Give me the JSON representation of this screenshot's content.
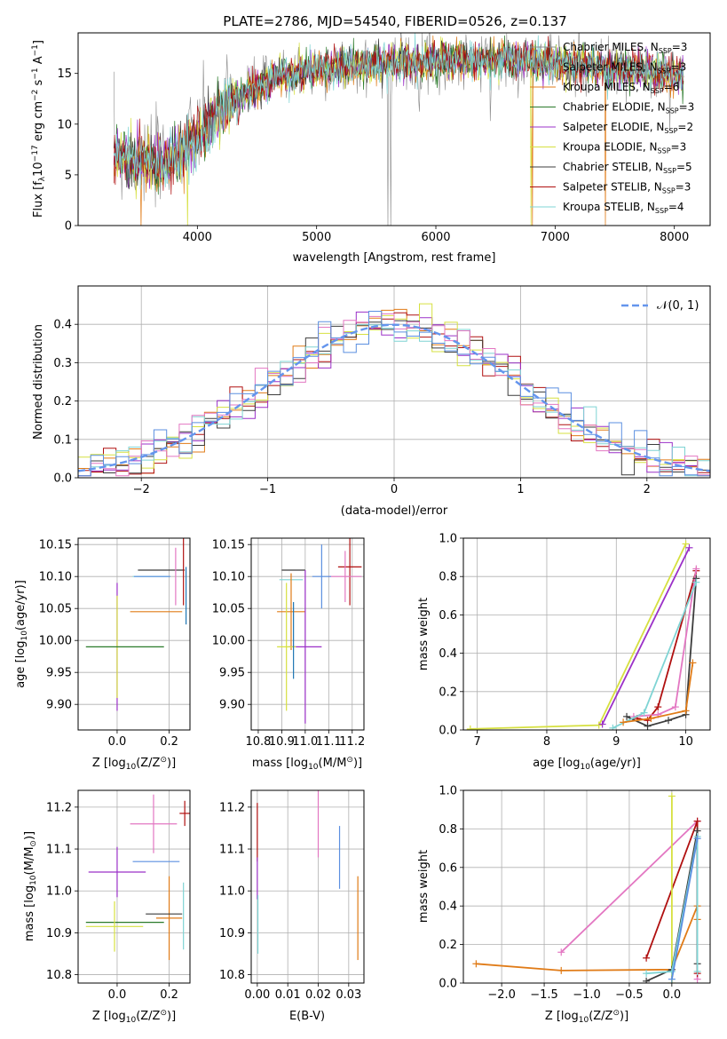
{
  "figure_title": "PLATE=2786, MJD=54540, FIBERID=0526, z=0.137",
  "colors": {
    "Chabrier MILES": "#1f77b4",
    "Salpeter MILES": "#8c8c8c",
    "Kroupa MILES": "#e07b17",
    "Chabrier ELODIE": "#2a7a2a",
    "Salpeter ELODIE": "#9b30c8",
    "Kroupa ELODIE": "#d6e040",
    "Chabrier STELIB": "#3c3c3c",
    "Salpeter STELIB": "#b01010",
    "Kroupa STELIB": "#7fd4d4",
    "extra_pink": "#e377c2",
    "extra_blue": "#5b8fe0",
    "gauss": "#6495ed"
  },
  "chart_data": [
    {
      "id": "spectrum",
      "type": "line",
      "title": "PLATE=2786, MJD=54540, FIBERID=0526, z=0.137",
      "xlabel": "wavelength [Angstrom, rest frame]",
      "ylabel_parts": [
        "Flux [f",
        "λ",
        "10",
        "−17",
        " erg cm",
        "−2",
        " s",
        "−1",
        " A",
        "−1",
        "]"
      ],
      "xlim": [
        3000,
        8300
      ],
      "ylim": [
        0,
        19
      ],
      "xticks": [
        "4000",
        "5000",
        "6000",
        "7000",
        "8000"
      ],
      "yticks": [
        "0",
        "5",
        "10",
        "15"
      ],
      "legend": [
        {
          "label": "Chabrier MILES, N",
          "sub": "SSP",
          "tail": "=3",
          "color_key": "Salpeter MILES"
        },
        {
          "label": "Salpeter MILES, N",
          "sub": "SSP",
          "tail": "=3",
          "color_key": "Salpeter MILES"
        },
        {
          "label": "Kroupa MILES, N",
          "sub": "SSP",
          "tail": "=6",
          "color_key": "Kroupa MILES"
        },
        {
          "label": "Chabrier ELODIE, N",
          "sub": "SSP",
          "tail": "=3",
          "color_key": "Chabrier ELODIE"
        },
        {
          "label": "Salpeter ELODIE, N",
          "sub": "SSP",
          "tail": "=2",
          "color_key": "Salpeter ELODIE"
        },
        {
          "label": "Kroupa ELODIE, N",
          "sub": "SSP",
          "tail": "=3",
          "color_key": "Kroupa ELODIE"
        },
        {
          "label": "Chabrier STELIB, N",
          "sub": "SSP",
          "tail": "=5",
          "color_key": "Chabrier STELIB"
        },
        {
          "label": "Salpeter STELIB, N",
          "sub": "SSP",
          "tail": "=3",
          "color_key": "Salpeter STELIB"
        },
        {
          "label": "Kroupa STELIB, N",
          "sub": "SSP",
          "tail": "=4",
          "color_key": "Kroupa STELIB"
        }
      ],
      "continuum": [
        [
          3300,
          7.0
        ],
        [
          3500,
          6.5
        ],
        [
          3700,
          6.0
        ],
        [
          3900,
          7.5
        ],
        [
          4100,
          10.0
        ],
        [
          4300,
          12.3
        ],
        [
          4500,
          13.6
        ],
        [
          4700,
          14.8
        ],
        [
          5000,
          15.3
        ],
        [
          5400,
          15.9
        ],
        [
          5800,
          16.1
        ],
        [
          6200,
          16.3
        ],
        [
          6600,
          16.3
        ],
        [
          7000,
          16.1
        ],
        [
          7400,
          15.6
        ],
        [
          7800,
          15.2
        ],
        [
          8080,
          14.8
        ]
      ],
      "dropouts": [
        [
          3530,
          "Kroupa MILES"
        ],
        [
          3920,
          "Kroupa ELODIE"
        ],
        [
          5600,
          "Salpeter MILES"
        ],
        [
          5620,
          "Salpeter MILES"
        ],
        [
          6800,
          "Kroupa ELODIE"
        ],
        [
          6810,
          "Kroupa MILES"
        ],
        [
          7420,
          "Kroupa MILES"
        ]
      ]
    },
    {
      "id": "residuals",
      "type": "line",
      "xlabel": "(data-model)/error",
      "ylabel": "Normed distribution",
      "xlim": [
        -2.5,
        2.5
      ],
      "ylim": [
        0,
        0.5
      ],
      "xticks": [
        "−2",
        "−1",
        "0",
        "1",
        "2"
      ],
      "yticks": [
        "0.0",
        "0.1",
        "0.2",
        "0.3",
        "0.4"
      ],
      "legend_label": "𝒩(0, 1)"
    },
    {
      "id": "age_vs_Z",
      "type": "scatter",
      "xlabel_parts": [
        "Z [log",
        "10",
        "(Z/Z",
        "⊙",
        ")]"
      ],
      "ylabel_parts": [
        "age  [log",
        "10",
        "(age/yr)]"
      ],
      "xlim": [
        -0.15,
        0.28
      ],
      "ylim": [
        9.86,
        10.16
      ],
      "xticks": [
        "0.0",
        "0.2"
      ],
      "yticks": [
        "9.90",
        "9.95",
        "10.00",
        "10.05",
        "10.10",
        "10.15"
      ],
      "points": [
        {
          "c": "Chabrier STELIB",
          "x": 0.17,
          "y": 10.11,
          "xe": 0.09,
          "ye": 0.0
        },
        {
          "c": "Salpeter STELIB",
          "x": 0.255,
          "y": 10.11,
          "xe": 0.0,
          "ye": 0.055
        },
        {
          "c": "Kroupa STELIB",
          "x": 0.13,
          "y": 10.1,
          "xe": 0.07,
          "ye": 0.0
        },
        {
          "c": "extra_pink",
          "x": 0.225,
          "y": 10.1,
          "xe": 0.0,
          "ye": 0.045
        },
        {
          "c": "extra_blue",
          "x": 0.135,
          "y": 10.1,
          "xe": 0.07,
          "ye": 0.0
        },
        {
          "c": "Kroupa MILES",
          "x": 0.15,
          "y": 10.045,
          "xe": 0.1,
          "ye": 0.0
        },
        {
          "c": "Salpeter ELODIE",
          "x": 0.0,
          "y": 9.99,
          "xe": 0.0,
          "ye": 0.1
        },
        {
          "c": "Kroupa ELODIE",
          "x": 0.0,
          "y": 9.99,
          "xe": 0.0,
          "ye": 0.08
        },
        {
          "c": "Chabrier ELODIE",
          "x": 0.03,
          "y": 9.99,
          "xe": 0.15,
          "ye": 0.0
        },
        {
          "c": "Chabrier MILES",
          "x": 0.265,
          "y": 10.07,
          "xe": 0.0,
          "ye": 0.045
        }
      ]
    },
    {
      "id": "age_vs_mass",
      "type": "scatter",
      "xlabel_parts": [
        "mass [log",
        "10",
        "(M/M",
        "⊙",
        ")]"
      ],
      "xlim": [
        10.77,
        11.25
      ],
      "ylim": [
        9.86,
        10.16
      ],
      "xticks": [
        "10.8",
        "10.9",
        "11.0",
        "11.1",
        "11.2"
      ],
      "yticks": [
        "9.90",
        "9.95",
        "10.00",
        "10.05",
        "10.10",
        "10.15"
      ],
      "points": [
        {
          "c": "Salpeter STELIB",
          "x": 11.19,
          "y": 10.115,
          "xe": 0.05,
          "ye": 0.06
        },
        {
          "c": "extra_pink",
          "x": 11.17,
          "y": 10.1,
          "xe": 0.07,
          "ye": 0.04
        },
        {
          "c": "extra_blue",
          "x": 11.07,
          "y": 10.1,
          "xe": 0.04,
          "ye": 0.05
        },
        {
          "c": "Chabrier STELIB",
          "x": 10.95,
          "y": 10.11,
          "xe": 0.05,
          "ye": 0.0
        },
        {
          "c": "Kroupa STELIB",
          "x": 10.94,
          "y": 10.095,
          "xe": 0.05,
          "ye": 0.0
        },
        {
          "c": "Kroupa MILES",
          "x": 10.94,
          "y": 10.045,
          "xe": 0.06,
          "ye": 0.06
        },
        {
          "c": "Salpeter ELODIE",
          "x": 11.0,
          "y": 9.99,
          "xe": 0.07,
          "ye": 0.12
        },
        {
          "c": "Kroupa ELODIE",
          "x": 10.92,
          "y": 9.99,
          "xe": 0.04,
          "ye": 0.1
        },
        {
          "c": "Chabrier MILES",
          "x": 10.95,
          "y": 10.0,
          "xe": 0.0,
          "ye": 0.06
        }
      ]
    },
    {
      "id": "weight_vs_age",
      "type": "line",
      "xlabel_parts": [
        "age  [log",
        "10",
        "(age/yr)]"
      ],
      "ylabel": "mass weight",
      "xlim": [
        6.8,
        10.35
      ],
      "ylim": [
        0,
        1.0
      ],
      "xticks": [
        "7",
        "8",
        "9",
        "10"
      ],
      "yticks": [
        "0.0",
        "0.2",
        "0.4",
        "0.6",
        "0.8",
        "1.0"
      ],
      "series": [
        {
          "c": "Kroupa ELODIE",
          "x": [
            6.9,
            8.75,
            10.0
          ],
          "y": [
            0.005,
            0.025,
            0.97
          ]
        },
        {
          "c": "Salpeter ELODIE",
          "x": [
            8.8,
            10.05
          ],
          "y": [
            0.03,
            0.95
          ]
        },
        {
          "c": "Salpeter STELIB",
          "x": [
            9.3,
            9.45,
            9.6,
            10.15
          ],
          "y": [
            0.06,
            0.05,
            0.12,
            0.83
          ]
        },
        {
          "c": "extra_pink",
          "x": [
            9.25,
            9.6,
            9.85,
            10.15
          ],
          "y": [
            0.07,
            0.08,
            0.12,
            0.84
          ]
        },
        {
          "c": "Chabrier STELIB",
          "x": [
            9.15,
            9.45,
            9.75,
            10.0,
            10.15
          ],
          "y": [
            0.07,
            0.02,
            0.05,
            0.08,
            0.79
          ]
        },
        {
          "c": "Kroupa STELIB",
          "x": [
            8.95,
            9.4,
            10.15
          ],
          "y": [
            0.01,
            0.09,
            0.77
          ]
        },
        {
          "c": "Kroupa MILES",
          "x": [
            9.1,
            9.5,
            10.0,
            10.1
          ],
          "y": [
            0.04,
            0.06,
            0.1,
            0.35
          ]
        }
      ]
    },
    {
      "id": "mass_vs_Z",
      "type": "scatter",
      "xlabel_parts": [
        "Z [log",
        "10",
        "(Z/Z",
        "⊙",
        ")]"
      ],
      "ylabel_parts": [
        "mass [log",
        "10",
        "(M/M",
        "⊙",
        ")]"
      ],
      "xlim": [
        -0.15,
        0.28
      ],
      "ylim": [
        10.78,
        11.24
      ],
      "xticks": [
        "0.0",
        "0.2"
      ],
      "yticks": [
        "10.8",
        "10.9",
        "11.0",
        "11.1",
        "11.2"
      ],
      "points": [
        {
          "c": "Salpeter STELIB",
          "x": 0.26,
          "y": 11.185,
          "xe": 0.02,
          "ye": 0.03
        },
        {
          "c": "extra_pink",
          "x": 0.14,
          "y": 11.16,
          "xe": 0.09,
          "ye": 0.07
        },
        {
          "c": "extra_blue",
          "x": 0.15,
          "y": 11.07,
          "xe": 0.09,
          "ye": 0.0
        },
        {
          "c": "Salpeter ELODIE",
          "x": 0.0,
          "y": 11.045,
          "xe": 0.11,
          "ye": 0.06
        },
        {
          "c": "Kroupa MILES",
          "x": 0.2,
          "y": 10.935,
          "xe": 0.05,
          "ye": 0.1
        },
        {
          "c": "Chabrier STELIB",
          "x": 0.18,
          "y": 10.945,
          "xe": 0.07,
          "ye": 0.0
        },
        {
          "c": "Kroupa STELIB",
          "x": 0.255,
          "y": 10.94,
          "xe": 0.0,
          "ye": 0.08
        },
        {
          "c": "Chabrier ELODIE",
          "x": 0.03,
          "y": 10.925,
          "xe": 0.15,
          "ye": 0.0
        },
        {
          "c": "Kroupa ELODIE",
          "x": -0.01,
          "y": 10.915,
          "xe": 0.11,
          "ye": 0.06
        }
      ]
    },
    {
      "id": "mass_vs_EBV",
      "type": "scatter",
      "xlabel": "E(B-V)",
      "xlim": [
        -0.002,
        0.035
      ],
      "ylim": [
        10.78,
        11.24
      ],
      "xticks": [
        "0.00",
        "0.01",
        "0.02",
        "0.03"
      ],
      "yticks": [
        "10.8",
        "10.9",
        "11.0",
        "11.1",
        "11.2"
      ],
      "points": [
        {
          "c": "Salpeter STELIB",
          "x": 0.0,
          "y": 11.14,
          "xe": 0.0,
          "ye": 0.07
        },
        {
          "c": "Salpeter ELODIE",
          "x": 0.0,
          "y": 11.03,
          "xe": 0.0,
          "ye": 0.05
        },
        {
          "c": "Kroupa STELIB",
          "x": 0.0002,
          "y": 10.92,
          "xe": 0.0,
          "ye": 0.07
        },
        {
          "c": "extra_pink",
          "x": 0.02,
          "y": 11.16,
          "xe": 0.0,
          "ye": 0.08
        },
        {
          "c": "extra_blue",
          "x": 0.027,
          "y": 11.08,
          "xe": 0.0,
          "ye": 0.075
        },
        {
          "c": "Kroupa MILES",
          "x": 0.033,
          "y": 10.935,
          "xe": 0.0,
          "ye": 0.1
        }
      ]
    },
    {
      "id": "weight_vs_Z",
      "type": "line",
      "xlabel_parts": [
        "Z [log",
        "10",
        "(Z/Z",
        "⊙",
        ")]"
      ],
      "ylabel": "mass weight",
      "xlim": [
        -2.45,
        0.45
      ],
      "ylim": [
        0,
        1.0
      ],
      "xticks": [
        "−2.0",
        "−1.5",
        "−1.0",
        "−0.5",
        "0.0"
      ],
      "yticks": [
        "0.0",
        "0.2",
        "0.4",
        "0.6",
        "0.8",
        "1.0"
      ],
      "series": [
        {
          "c": "Kroupa MILES",
          "x": [
            -2.3,
            -1.3,
            0.0,
            0.3,
            0.3
          ],
          "y": [
            0.1,
            0.065,
            0.07,
            0.4,
            0.33
          ]
        },
        {
          "c": "extra_pink",
          "x": [
            -1.3,
            0.3,
            0.3
          ],
          "y": [
            0.16,
            0.84,
            0.02
          ]
        },
        {
          "c": "Salpeter STELIB",
          "x": [
            -0.3,
            0.3,
            0.3
          ],
          "y": [
            0.13,
            0.84,
            0.05
          ]
        },
        {
          "c": "Kroupa ELODIE",
          "x": [
            0.0,
            0.0
          ],
          "y": [
            0.0,
            0.97
          ]
        },
        {
          "c": "Chabrier STELIB",
          "x": [
            -0.3,
            0.0,
            0.3,
            0.3
          ],
          "y": [
            0.01,
            0.07,
            0.79,
            0.1
          ]
        },
        {
          "c": "Kroupa STELIB",
          "x": [
            -0.3,
            0.0,
            0.3,
            0.3
          ],
          "y": [
            0.05,
            0.06,
            0.76,
            0.06
          ]
        },
        {
          "c": "extra_blue",
          "x": [
            0.0,
            0.3
          ],
          "y": [
            0.02,
            0.75
          ]
        }
      ]
    }
  ]
}
